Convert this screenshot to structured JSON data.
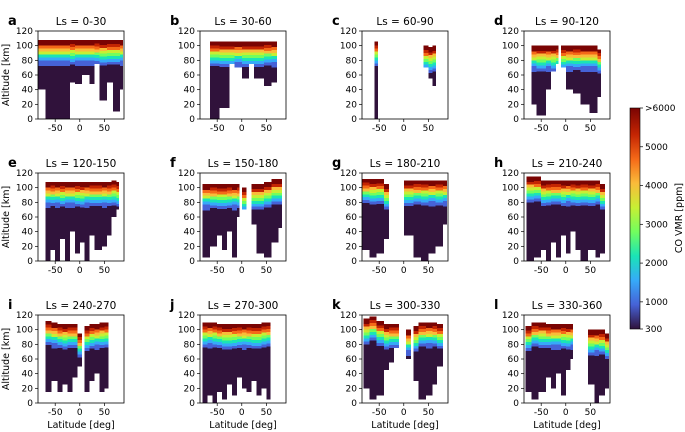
{
  "figure": {
    "xlabel": "Latitude [deg]",
    "ylabel": "Altitude [km]",
    "colorbar": {
      "label": "CO VMR [ppm]",
      "range": [
        300,
        6000
      ],
      "tick_labels": [
        ">6000",
        "5000",
        "4000",
        "3000",
        "2000",
        "1000",
        "300"
      ],
      "colors": [
        "#30123b",
        "#4662d7",
        "#36aaf9",
        "#1ae4b6",
        "#72fe5e",
        "#c7ef34",
        "#fabb3a",
        "#f56918",
        "#c42503",
        "#7a0403"
      ]
    }
  },
  "chart_data": [
    {
      "type": "heatmap",
      "panel": "a",
      "title": "Ls = 0-30",
      "xlabel": "",
      "ylabel": "Altitude [km]",
      "xlim": [
        -85,
        90
      ],
      "ylim": [
        0,
        120
      ],
      "x_ticks": [
        "-50",
        "0",
        "50"
      ],
      "y_ticks": [
        "0",
        "20",
        "40",
        "60",
        "80",
        "100",
        "120"
      ],
      "coverage": [
        [
          -85,
          -70,
          40,
          108
        ],
        [
          -70,
          -20,
          0,
          108
        ],
        [
          -20,
          -10,
          50,
          108
        ],
        [
          -10,
          5,
          48,
          108
        ],
        [
          5,
          20,
          60,
          108
        ],
        [
          20,
          30,
          48,
          108
        ],
        [
          30,
          40,
          75,
          108
        ],
        [
          40,
          55,
          25,
          108
        ],
        [
          55,
          68,
          50,
          108
        ],
        [
          68,
          82,
          10,
          108
        ],
        [
          82,
          88,
          40,
          108
        ]
      ]
    },
    {
      "type": "heatmap",
      "panel": "b",
      "title": "Ls = 30-60",
      "xlabel": "",
      "ylabel": "",
      "xlim": [
        -85,
        90
      ],
      "ylim": [
        0,
        120
      ],
      "x_ticks": [
        "-50",
        "0",
        "50"
      ],
      "y_ticks": [
        "0",
        "20",
        "40",
        "60",
        "80",
        "100",
        "120"
      ],
      "coverage": [
        [
          -65,
          -45,
          0,
          106
        ],
        [
          -45,
          -25,
          15,
          106
        ],
        [
          -25,
          -15,
          75,
          106
        ],
        [
          -15,
          0,
          70,
          106
        ],
        [
          0,
          15,
          55,
          106
        ],
        [
          15,
          25,
          75,
          106
        ],
        [
          25,
          45,
          55,
          106
        ],
        [
          45,
          60,
          45,
          106
        ],
        [
          60,
          72,
          50,
          106
        ]
      ]
    },
    {
      "type": "heatmap",
      "panel": "c",
      "title": "Ls = 60-90",
      "xlabel": "",
      "ylabel": "",
      "xlim": [
        -85,
        90
      ],
      "ylim": [
        0,
        120
      ],
      "x_ticks": [
        "-50",
        "0",
        "50"
      ],
      "y_ticks": [
        "0",
        "20",
        "40",
        "60",
        "80",
        "100",
        "120"
      ],
      "coverage": [
        [
          -60,
          -52,
          0,
          106
        ],
        [
          40,
          50,
          70,
          100
        ],
        [
          50,
          58,
          55,
          98
        ],
        [
          58,
          66,
          45,
          100
        ]
      ]
    },
    {
      "type": "heatmap",
      "panel": "d",
      "title": "Ls = 90-120",
      "xlabel": "",
      "ylabel": "",
      "xlim": [
        -85,
        90
      ],
      "ylim": [
        0,
        120
      ],
      "x_ticks": [
        "-50",
        "0",
        "50"
      ],
      "y_ticks": [
        "0",
        "20",
        "40",
        "60",
        "80",
        "100",
        "120"
      ],
      "coverage": [
        [
          -70,
          -60,
          20,
          100
        ],
        [
          -60,
          -40,
          5,
          100
        ],
        [
          -40,
          -30,
          40,
          100
        ],
        [
          -30,
          -20,
          65,
          100
        ],
        [
          -20,
          -15,
          75,
          100
        ],
        [
          -10,
          0,
          70,
          100
        ],
        [
          0,
          15,
          40,
          100
        ],
        [
          15,
          30,
          35,
          100
        ],
        [
          30,
          48,
          20,
          100
        ],
        [
          48,
          65,
          8,
          100
        ],
        [
          65,
          72,
          30,
          95
        ]
      ]
    },
    {
      "type": "heatmap",
      "panel": "e",
      "title": "Ls = 120-150",
      "xlabel": "",
      "ylabel": "Altitude [km]",
      "xlim": [
        -85,
        90
      ],
      "ylim": [
        0,
        120
      ],
      "x_ticks": [
        "-50",
        "0",
        "50"
      ],
      "y_ticks": [
        "0",
        "20",
        "40",
        "60",
        "80",
        "100",
        "120"
      ],
      "coverage": [
        [
          -70,
          -60,
          0,
          108
        ],
        [
          -60,
          -50,
          15,
          108
        ],
        [
          -50,
          -40,
          0,
          108
        ],
        [
          -40,
          -30,
          30,
          108
        ],
        [
          -30,
          -20,
          0,
          108
        ],
        [
          -20,
          -10,
          40,
          108
        ],
        [
          -10,
          0,
          10,
          108
        ],
        [
          0,
          10,
          25,
          108
        ],
        [
          10,
          20,
          0,
          108
        ],
        [
          20,
          30,
          35,
          108
        ],
        [
          30,
          45,
          15,
          108
        ],
        [
          45,
          55,
          20,
          108
        ],
        [
          55,
          65,
          35,
          108
        ],
        [
          65,
          75,
          60,
          110
        ],
        [
          75,
          80,
          70,
          108
        ]
      ]
    },
    {
      "type": "heatmap",
      "panel": "f",
      "title": "Ls = 150-180",
      "xlabel": "",
      "ylabel": "",
      "xlim": [
        -85,
        90
      ],
      "ylim": [
        0,
        120
      ],
      "x_ticks": [
        "-50",
        "0",
        "50"
      ],
      "y_ticks": [
        "0",
        "20",
        "40",
        "60",
        "80",
        "100",
        "120"
      ],
      "coverage": [
        [
          -80,
          -65,
          5,
          105
        ],
        [
          -65,
          -50,
          20,
          105
        ],
        [
          -50,
          -40,
          35,
          105
        ],
        [
          -40,
          -30,
          15,
          105
        ],
        [
          -30,
          -20,
          40,
          105
        ],
        [
          -20,
          -10,
          5,
          105
        ],
        [
          -10,
          -5,
          60,
          105
        ],
        [
          0,
          10,
          70,
          100
        ],
        [
          20,
          30,
          50,
          105
        ],
        [
          30,
          45,
          10,
          105
        ],
        [
          45,
          60,
          5,
          108
        ],
        [
          60,
          75,
          25,
          112
        ],
        [
          75,
          82,
          45,
          112
        ]
      ]
    },
    {
      "type": "heatmap",
      "panel": "g",
      "title": "Ls = 180-210",
      "xlabel": "",
      "ylabel": "",
      "xlim": [
        -85,
        90
      ],
      "ylim": [
        0,
        120
      ],
      "x_ticks": [
        "-50",
        "0",
        "50"
      ],
      "y_ticks": [
        "0",
        "20",
        "40",
        "60",
        "80",
        "100",
        "120"
      ],
      "coverage": [
        [
          -85,
          -70,
          15,
          112
        ],
        [
          -70,
          -55,
          5,
          112
        ],
        [
          -55,
          -40,
          10,
          112
        ],
        [
          -40,
          -30,
          30,
          105
        ],
        [
          0,
          20,
          35,
          110
        ],
        [
          20,
          35,
          5,
          110
        ],
        [
          35,
          50,
          0,
          110
        ],
        [
          50,
          65,
          10,
          110
        ],
        [
          65,
          80,
          20,
          110
        ],
        [
          80,
          88,
          50,
          110
        ]
      ]
    },
    {
      "type": "heatmap",
      "panel": "h",
      "title": "Ls = 210-240",
      "xlabel": "",
      "ylabel": "",
      "xlim": [
        -85,
        90
      ],
      "ylim": [
        0,
        120
      ],
      "x_ticks": [
        "-50",
        "0",
        "50"
      ],
      "y_ticks": [
        "0",
        "20",
        "40",
        "60",
        "80",
        "100",
        "120"
      ],
      "coverage": [
        [
          -80,
          -65,
          0,
          115
        ],
        [
          -65,
          -50,
          5,
          115
        ],
        [
          -50,
          -40,
          15,
          110
        ],
        [
          -40,
          -30,
          0,
          110
        ],
        [
          -30,
          -20,
          25,
          110
        ],
        [
          -20,
          -10,
          5,
          110
        ],
        [
          -10,
          0,
          35,
          110
        ],
        [
          0,
          10,
          10,
          110
        ],
        [
          10,
          20,
          40,
          110
        ],
        [
          20,
          30,
          15,
          110
        ],
        [
          30,
          45,
          0,
          110
        ],
        [
          45,
          60,
          15,
          110
        ],
        [
          60,
          70,
          5,
          110
        ],
        [
          70,
          80,
          10,
          105
        ]
      ]
    },
    {
      "type": "heatmap",
      "panel": "i",
      "title": "Ls = 240-270",
      "xlabel": "Latitude [deg]",
      "ylabel": "Altitude [km]",
      "xlim": [
        -85,
        90
      ],
      "ylim": [
        0,
        120
      ],
      "x_ticks": [
        "-50",
        "0",
        "50"
      ],
      "y_ticks": [
        "0",
        "20",
        "40",
        "60",
        "80",
        "100",
        "120"
      ],
      "coverage": [
        [
          -70,
          -58,
          15,
          112
        ],
        [
          -58,
          -45,
          30,
          110
        ],
        [
          -45,
          -35,
          15,
          108
        ],
        [
          -35,
          -25,
          25,
          108
        ],
        [
          -25,
          -15,
          15,
          108
        ],
        [
          -15,
          -5,
          35,
          108
        ],
        [
          -5,
          5,
          50,
          95
        ],
        [
          10,
          20,
          15,
          105
        ],
        [
          20,
          30,
          30,
          108
        ],
        [
          30,
          40,
          40,
          108
        ],
        [
          40,
          50,
          15,
          110
        ],
        [
          50,
          58,
          20,
          110
        ]
      ]
    },
    {
      "type": "heatmap",
      "panel": "j",
      "title": "Ls = 270-300",
      "xlabel": "Latitude [deg]",
      "ylabel": "",
      "xlim": [
        -85,
        90
      ],
      "ylim": [
        0,
        120
      ],
      "x_ticks": [
        "-50",
        "0",
        "50"
      ],
      "y_ticks": [
        "0",
        "20",
        "40",
        "60",
        "80",
        "100",
        "120"
      ],
      "coverage": [
        [
          -80,
          -70,
          0,
          110
        ],
        [
          -70,
          -60,
          10,
          110
        ],
        [
          -60,
          -50,
          0,
          110
        ],
        [
          -50,
          -40,
          15,
          108
        ],
        [
          -40,
          -30,
          5,
          108
        ],
        [
          -30,
          -20,
          25,
          108
        ],
        [
          -20,
          -10,
          10,
          108
        ],
        [
          -10,
          0,
          35,
          108
        ],
        [
          0,
          10,
          20,
          108
        ],
        [
          10,
          20,
          15,
          108
        ],
        [
          20,
          30,
          30,
          108
        ],
        [
          30,
          40,
          10,
          108
        ],
        [
          40,
          50,
          20,
          110
        ],
        [
          50,
          58,
          5,
          110
        ]
      ]
    },
    {
      "type": "heatmap",
      "panel": "k",
      "title": "Ls = 300-330",
      "xlabel": "Latitude [deg]",
      "ylabel": "",
      "xlim": [
        -85,
        90
      ],
      "ylim": [
        0,
        120
      ],
      "x_ticks": [
        "-50",
        "0",
        "50"
      ],
      "y_ticks": [
        "0",
        "20",
        "40",
        "60",
        "80",
        "100",
        "120"
      ],
      "coverage": [
        [
          -82,
          -70,
          20,
          115
        ],
        [
          -70,
          -55,
          5,
          118
        ],
        [
          -55,
          -40,
          10,
          112
        ],
        [
          -40,
          -30,
          45,
          108
        ],
        [
          -30,
          -20,
          55,
          108
        ],
        [
          -20,
          -10,
          75,
          108
        ],
        [
          5,
          15,
          60,
          100
        ],
        [
          20,
          30,
          30,
          105
        ],
        [
          30,
          45,
          5,
          110
        ],
        [
          45,
          58,
          10,
          110
        ],
        [
          58,
          68,
          25,
          110
        ],
        [
          68,
          80,
          50,
          108
        ]
      ]
    },
    {
      "type": "heatmap",
      "panel": "l",
      "title": "Ls = 330-360",
      "xlabel": "Latitude [deg]",
      "ylabel": "",
      "xlim": [
        -85,
        90
      ],
      "ylim": [
        0,
        120
      ],
      "x_ticks": [
        "-50",
        "0",
        "50"
      ],
      "y_ticks": [
        "0",
        "20",
        "40",
        "60",
        "80",
        "100",
        "120"
      ],
      "coverage": [
        [
          -82,
          -70,
          15,
          105
        ],
        [
          -70,
          -55,
          5,
          110
        ],
        [
          -55,
          -40,
          15,
          110
        ],
        [
          -40,
          -30,
          35,
          108
        ],
        [
          -30,
          -20,
          20,
          108
        ],
        [
          -20,
          -10,
          40,
          108
        ],
        [
          -10,
          0,
          10,
          108
        ],
        [
          0,
          10,
          45,
          108
        ],
        [
          10,
          15,
          60,
          108
        ],
        [
          45,
          58,
          25,
          100
        ],
        [
          58,
          68,
          0,
          100
        ],
        [
          68,
          80,
          10,
          100
        ],
        [
          80,
          88,
          20,
          95
        ]
      ]
    }
  ]
}
